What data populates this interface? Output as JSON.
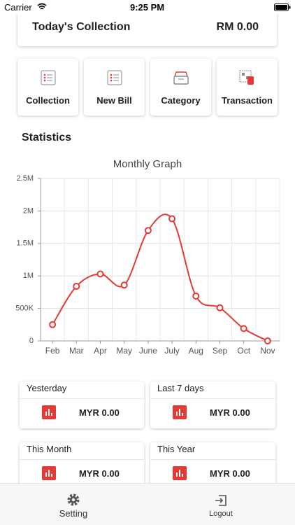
{
  "status_bar": {
    "carrier": "Carrier",
    "time": "9:25 PM"
  },
  "header": {
    "title": "Today's Collection",
    "amount": "RM 0.00"
  },
  "menu": [
    "Collection",
    "New Bill",
    "Category",
    "Transaction"
  ],
  "section_title": "Statistics",
  "chart_data": {
    "type": "line",
    "title": "Monthly Graph",
    "categories": [
      "Feb",
      "Mar",
      "Apr",
      "May",
      "June",
      "July",
      "Aug",
      "Sep",
      "Oct",
      "Nov"
    ],
    "values": [
      250000,
      840000,
      1030000,
      860000,
      1700000,
      1880000,
      690000,
      510000,
      190000,
      0
    ],
    "color": "#e53935",
    "ylim": [
      0,
      2500000
    ],
    "yticks": [
      0,
      {
        "value": 500000,
        "label": "500K"
      },
      {
        "value": 1000000,
        "label": "1M"
      },
      {
        "value": 1500000,
        "label": "1.5M"
      },
      {
        "value": 2000000,
        "label": "2M"
      },
      {
        "value": 2500000,
        "label": "2.5M"
      }
    ],
    "grid": true,
    "smooth": true
  },
  "stats": [
    {
      "label": "Yesterday",
      "value": "MYR 0.00"
    },
    {
      "label": "Last 7 days",
      "value": "MYR 0.00"
    },
    {
      "label": "This Month",
      "value": "MYR 0.00"
    },
    {
      "label": "This Year",
      "value": "MYR 0.00"
    }
  ],
  "tabs": [
    "Setting",
    "Logout"
  ]
}
